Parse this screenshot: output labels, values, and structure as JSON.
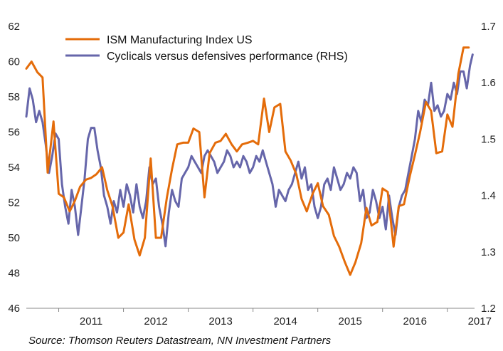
{
  "source": "Source: Thomson Reuters Datastream, NN Investment Partners",
  "chart_data": {
    "type": "line",
    "title": "",
    "xlabel": "",
    "ylabel": "",
    "x_ticks": [
      "2011",
      "2012",
      "2013",
      "2014",
      "2015",
      "2016",
      "2017"
    ],
    "xlim": [
      2010.5,
      2017.42
    ],
    "left_axis": {
      "ylim": [
        46,
        62
      ],
      "ticks": [
        "46",
        "48",
        "50",
        "52",
        "54",
        "56",
        "58",
        "60",
        "62"
      ]
    },
    "right_axis": {
      "ylim": [
        1.2,
        1.7
      ],
      "ticks": [
        "1.2",
        "1.3",
        "1.4",
        "1.5",
        "1.6",
        "1.7"
      ]
    },
    "grid": false,
    "legend_position": "top-left",
    "series": [
      {
        "name": "ISM Manufacturing Index US",
        "axis": "left",
        "color": "#E46C0A",
        "x": [
          2010.5,
          2010.58,
          2010.67,
          2010.75,
          2010.83,
          2010.92,
          2011.0,
          2011.08,
          2011.17,
          2011.25,
          2011.33,
          2011.42,
          2011.5,
          2011.58,
          2011.67,
          2011.75,
          2011.83,
          2011.92,
          2012.0,
          2012.08,
          2012.17,
          2012.25,
          2012.33,
          2012.42,
          2012.5,
          2012.58,
          2012.67,
          2012.75,
          2012.83,
          2012.92,
          2013.0,
          2013.08,
          2013.17,
          2013.25,
          2013.33,
          2013.42,
          2013.5,
          2013.58,
          2013.67,
          2013.75,
          2013.83,
          2013.92,
          2014.0,
          2014.08,
          2014.17,
          2014.25,
          2014.33,
          2014.42,
          2014.5,
          2014.58,
          2014.67,
          2014.75,
          2014.83,
          2014.92,
          2015.0,
          2015.08,
          2015.17,
          2015.25,
          2015.33,
          2015.42,
          2015.5,
          2015.58,
          2015.67,
          2015.75,
          2015.83,
          2015.92,
          2016.0,
          2016.08,
          2016.17,
          2016.25,
          2016.33,
          2016.42,
          2016.5,
          2016.58,
          2016.67,
          2016.75,
          2016.83,
          2016.92,
          2017.0,
          2017.08,
          2017.17,
          2017.25,
          2017.33
        ],
        "values": [
          59.6,
          60.0,
          59.4,
          59.1,
          53.7,
          56.6,
          52.5,
          52.3,
          51.5,
          52.1,
          52.9,
          53.3,
          53.4,
          53.6,
          54.0,
          52.7,
          51.8,
          50.0,
          50.3,
          51.9,
          49.9,
          49.0,
          50.0,
          54.5,
          50.0,
          50.0,
          52.3,
          53.9,
          55.3,
          55.4,
          55.4,
          56.2,
          56.0,
          52.3,
          54.8,
          55.4,
          55.5,
          55.9,
          55.3,
          54.9,
          55.3,
          55.4,
          55.5,
          55.3,
          57.9,
          56.0,
          57.4,
          57.6,
          54.9,
          54.4,
          53.6,
          52.2,
          51.5,
          52.5,
          53.1,
          51.8,
          51.3,
          50.1,
          49.5,
          48.6,
          47.9,
          48.6,
          49.7,
          51.7,
          50.7,
          50.9,
          52.8,
          52.6,
          49.5,
          51.8,
          51.9,
          53.5,
          54.7,
          56.0,
          57.7,
          57.2,
          54.8,
          54.9,
          57.0,
          56.3,
          59.3,
          60.8,
          60.8
        ]
      },
      {
        "name": "Cyclicals versus defensives performance (RHS)",
        "axis": "right",
        "color": "#6666AA",
        "x": [
          2010.5,
          2010.55,
          2010.6,
          2010.65,
          2010.7,
          2010.75,
          2010.8,
          2010.85,
          2010.9,
          2010.95,
          2011.0,
          2011.05,
          2011.1,
          2011.15,
          2011.2,
          2011.25,
          2011.3,
          2011.35,
          2011.4,
          2011.45,
          2011.5,
          2011.55,
          2011.6,
          2011.65,
          2011.7,
          2011.75,
          2011.8,
          2011.85,
          2011.9,
          2011.95,
          2012.0,
          2012.05,
          2012.1,
          2012.15,
          2012.2,
          2012.25,
          2012.3,
          2012.35,
          2012.4,
          2012.45,
          2012.5,
          2012.55,
          2012.6,
          2012.65,
          2012.7,
          2012.75,
          2012.8,
          2012.85,
          2012.9,
          2012.95,
          2013.0,
          2013.05,
          2013.1,
          2013.15,
          2013.2,
          2013.25,
          2013.3,
          2013.35,
          2013.4,
          2013.45,
          2013.5,
          2013.55,
          2013.6,
          2013.65,
          2013.7,
          2013.75,
          2013.8,
          2013.85,
          2013.9,
          2013.95,
          2014.0,
          2014.05,
          2014.1,
          2014.15,
          2014.2,
          2014.25,
          2014.3,
          2014.35,
          2014.4,
          2014.45,
          2014.5,
          2014.55,
          2014.6,
          2014.65,
          2014.7,
          2014.75,
          2014.8,
          2014.85,
          2014.9,
          2014.95,
          2015.0,
          2015.05,
          2015.1,
          2015.15,
          2015.2,
          2015.25,
          2015.3,
          2015.35,
          2015.4,
          2015.45,
          2015.5,
          2015.55,
          2015.6,
          2015.65,
          2015.7,
          2015.75,
          2015.8,
          2015.85,
          2015.9,
          2015.95,
          2016.0,
          2016.05,
          2016.1,
          2016.15,
          2016.2,
          2016.25,
          2016.3,
          2016.35,
          2016.4,
          2016.45,
          2016.5,
          2016.55,
          2016.6,
          2016.65,
          2016.7,
          2016.75,
          2016.8,
          2016.85,
          2016.9,
          2016.95,
          2017.0,
          2017.05,
          2017.1,
          2017.15,
          2017.2,
          2017.25,
          2017.3,
          2017.35,
          2017.39
        ],
        "values": [
          1.54,
          1.59,
          1.57,
          1.53,
          1.55,
          1.53,
          1.49,
          1.44,
          1.47,
          1.51,
          1.5,
          1.42,
          1.38,
          1.35,
          1.41,
          1.38,
          1.33,
          1.38,
          1.43,
          1.5,
          1.52,
          1.52,
          1.48,
          1.45,
          1.4,
          1.38,
          1.35,
          1.39,
          1.37,
          1.41,
          1.38,
          1.42,
          1.4,
          1.37,
          1.42,
          1.38,
          1.36,
          1.39,
          1.45,
          1.42,
          1.43,
          1.38,
          1.35,
          1.31,
          1.37,
          1.41,
          1.39,
          1.38,
          1.43,
          1.44,
          1.45,
          1.47,
          1.46,
          1.45,
          1.44,
          1.47,
          1.48,
          1.47,
          1.46,
          1.44,
          1.45,
          1.46,
          1.48,
          1.47,
          1.45,
          1.46,
          1.45,
          1.47,
          1.46,
          1.44,
          1.45,
          1.47,
          1.46,
          1.48,
          1.46,
          1.44,
          1.42,
          1.38,
          1.41,
          1.4,
          1.39,
          1.41,
          1.42,
          1.44,
          1.46,
          1.43,
          1.45,
          1.41,
          1.42,
          1.38,
          1.36,
          1.38,
          1.42,
          1.43,
          1.41,
          1.45,
          1.43,
          1.41,
          1.42,
          1.44,
          1.43,
          1.45,
          1.44,
          1.39,
          1.41,
          1.36,
          1.37,
          1.41,
          1.39,
          1.36,
          1.38,
          1.34,
          1.4,
          1.36,
          1.33,
          1.38,
          1.4,
          1.41,
          1.44,
          1.47,
          1.5,
          1.55,
          1.53,
          1.57,
          1.56,
          1.6,
          1.55,
          1.56,
          1.54,
          1.55,
          1.58,
          1.57,
          1.6,
          1.58,
          1.62,
          1.62,
          1.59,
          1.63,
          1.65
        ]
      }
    ]
  }
}
